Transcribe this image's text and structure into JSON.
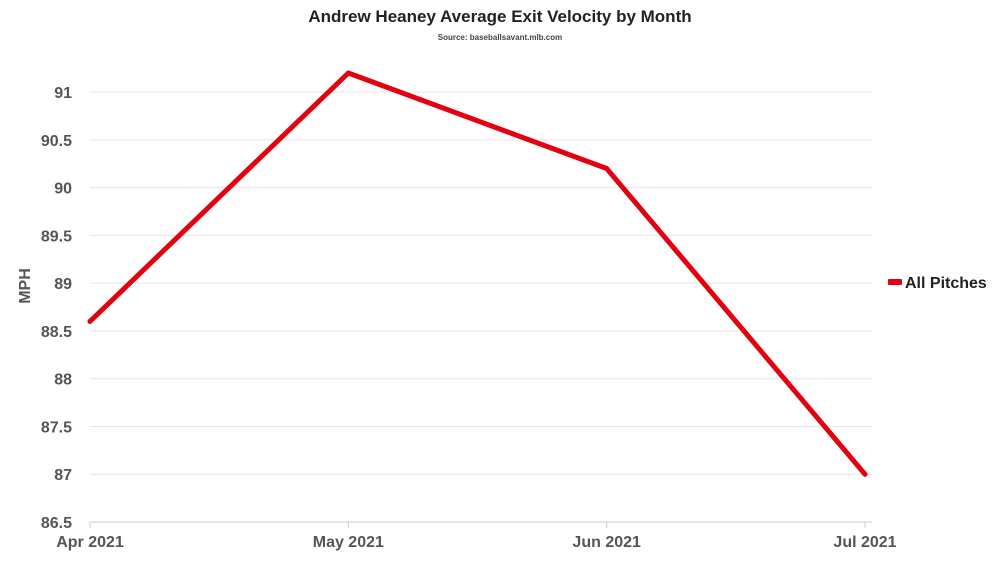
{
  "chart_data": {
    "type": "line",
    "title": "Andrew Heaney Average Exit Velocity by Month",
    "subtitle": "Source: baseballsavant.mlb.com",
    "xlabel": "",
    "ylabel": "MPH",
    "categories": [
      "Apr 2021",
      "May 2021",
      "Jun 2021",
      "Jul 2021"
    ],
    "series": [
      {
        "name": "All Pitches",
        "values": [
          88.6,
          91.2,
          90.2,
          87.0
        ],
        "color": "#e3000f"
      }
    ],
    "ylim": [
      86.5,
      91.2
    ],
    "yticks": [
      86.5,
      87,
      87.5,
      88,
      88.5,
      89,
      89.5,
      90,
      90.5,
      91
    ],
    "ytick_labels": [
      "86.5",
      "87",
      "87.5",
      "88",
      "88.5",
      "89",
      "89.5",
      "90",
      "90.5",
      "91"
    ],
    "grid": true,
    "legend_position": "right"
  }
}
